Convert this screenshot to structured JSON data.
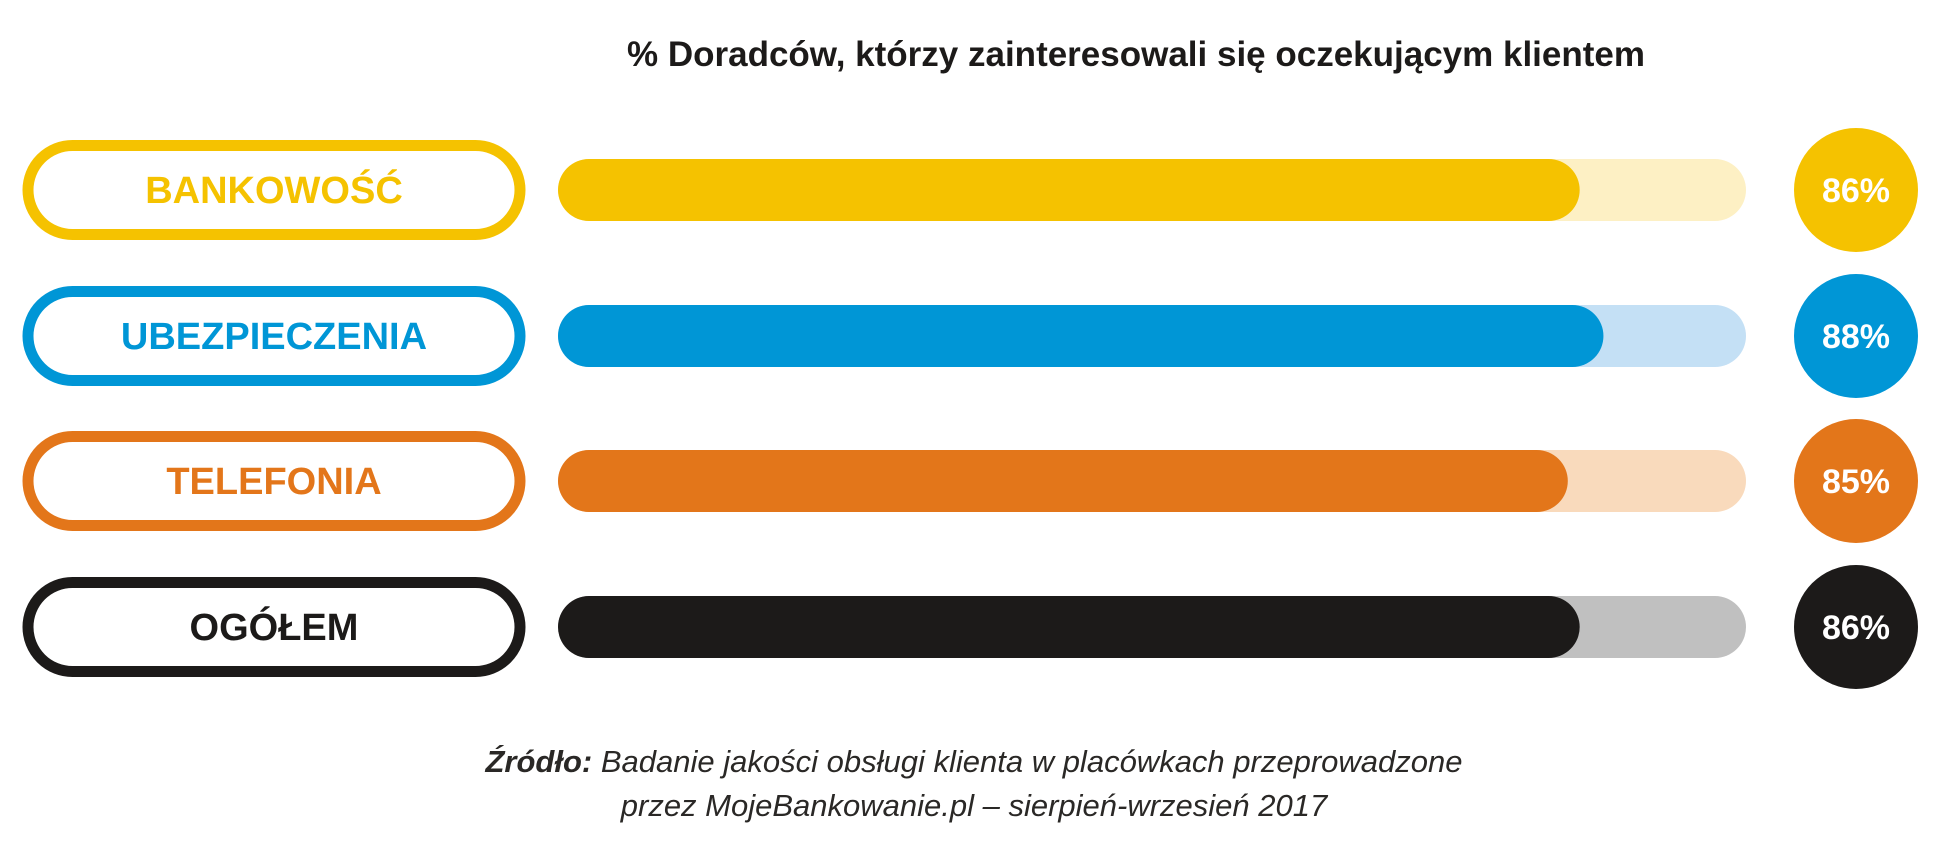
{
  "chart_data": {
    "type": "bar",
    "orientation": "horizontal",
    "title": "% Doradców, którzy zainteresowali się oczekującym klientem",
    "categories": [
      "BANKOWOŚĆ",
      "UBEZPIECZENIA",
      "TELEFONIA",
      "OGÓŁEM"
    ],
    "values": [
      86,
      88,
      85,
      86
    ],
    "value_labels": [
      "86%",
      "88%",
      "85%",
      "86%"
    ],
    "xlim": [
      0,
      100
    ],
    "colors": [
      "#f5c200",
      "#0096d6",
      "#e3761a",
      "#1c1a19"
    ],
    "track_colors": [
      "#fdf0c4",
      "#c4e0f5",
      "#f9dabc",
      "#c0c0c0"
    ],
    "grid": false,
    "legend": "none"
  },
  "source": {
    "label": "Źródło:",
    "line1": "Badanie jakości obsługi klienta w placówkach przeprowadzone",
    "line2": "przez MojeBankowanie.pl – sierpień-wrzesień 2017"
  }
}
